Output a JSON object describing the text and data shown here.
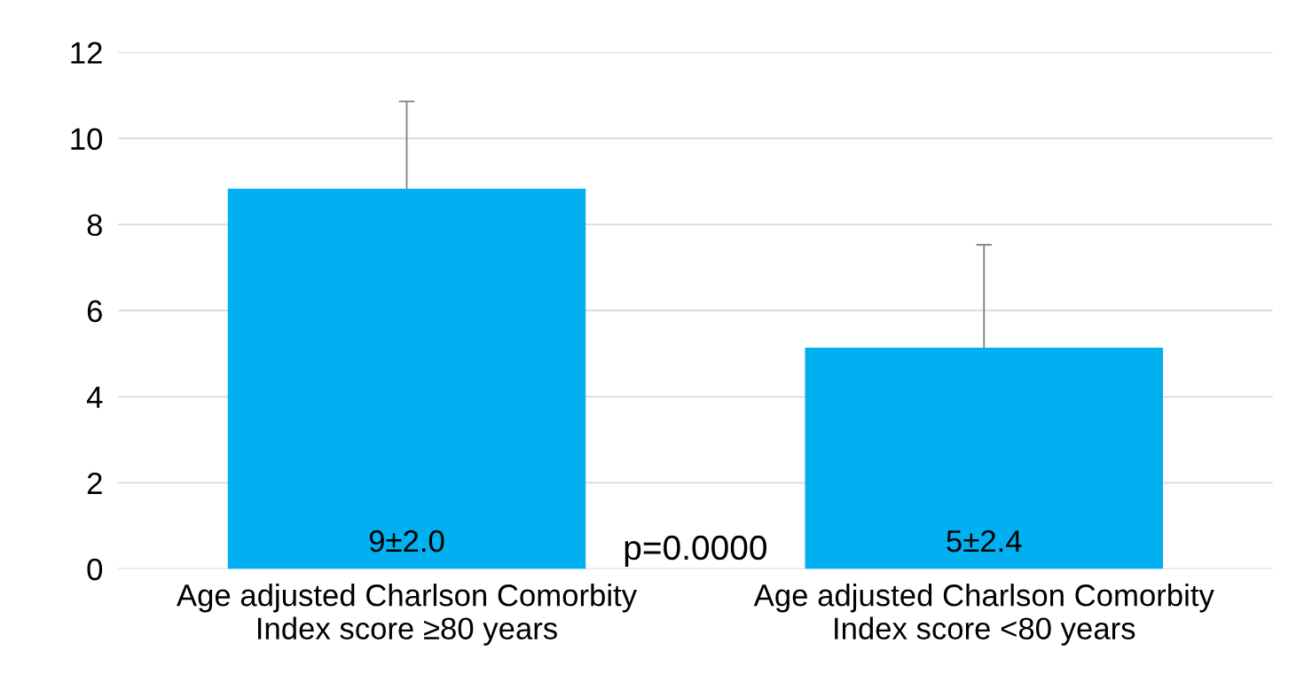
{
  "chart_data": {
    "type": "bar",
    "categories": [
      "Age adjusted Charlson Comorbity\nIndex score ≥80 years",
      "Age adjusted Charlson Comorbity\nIndex score <80 years"
    ],
    "values": [
      8.83,
      5.14
    ],
    "value_labels": [
      "9±2.0",
      "5±2.4"
    ],
    "errors": [
      [
        8.83,
        10.86
      ],
      [
        5.14,
        7.53
      ]
    ],
    "color": "#00b0f0",
    "ylim": [
      0,
      12
    ],
    "yticks": [
      0,
      2,
      4,
      6,
      8,
      10,
      12
    ],
    "grid": "y",
    "annotations": [
      "p=0.0000"
    ]
  }
}
